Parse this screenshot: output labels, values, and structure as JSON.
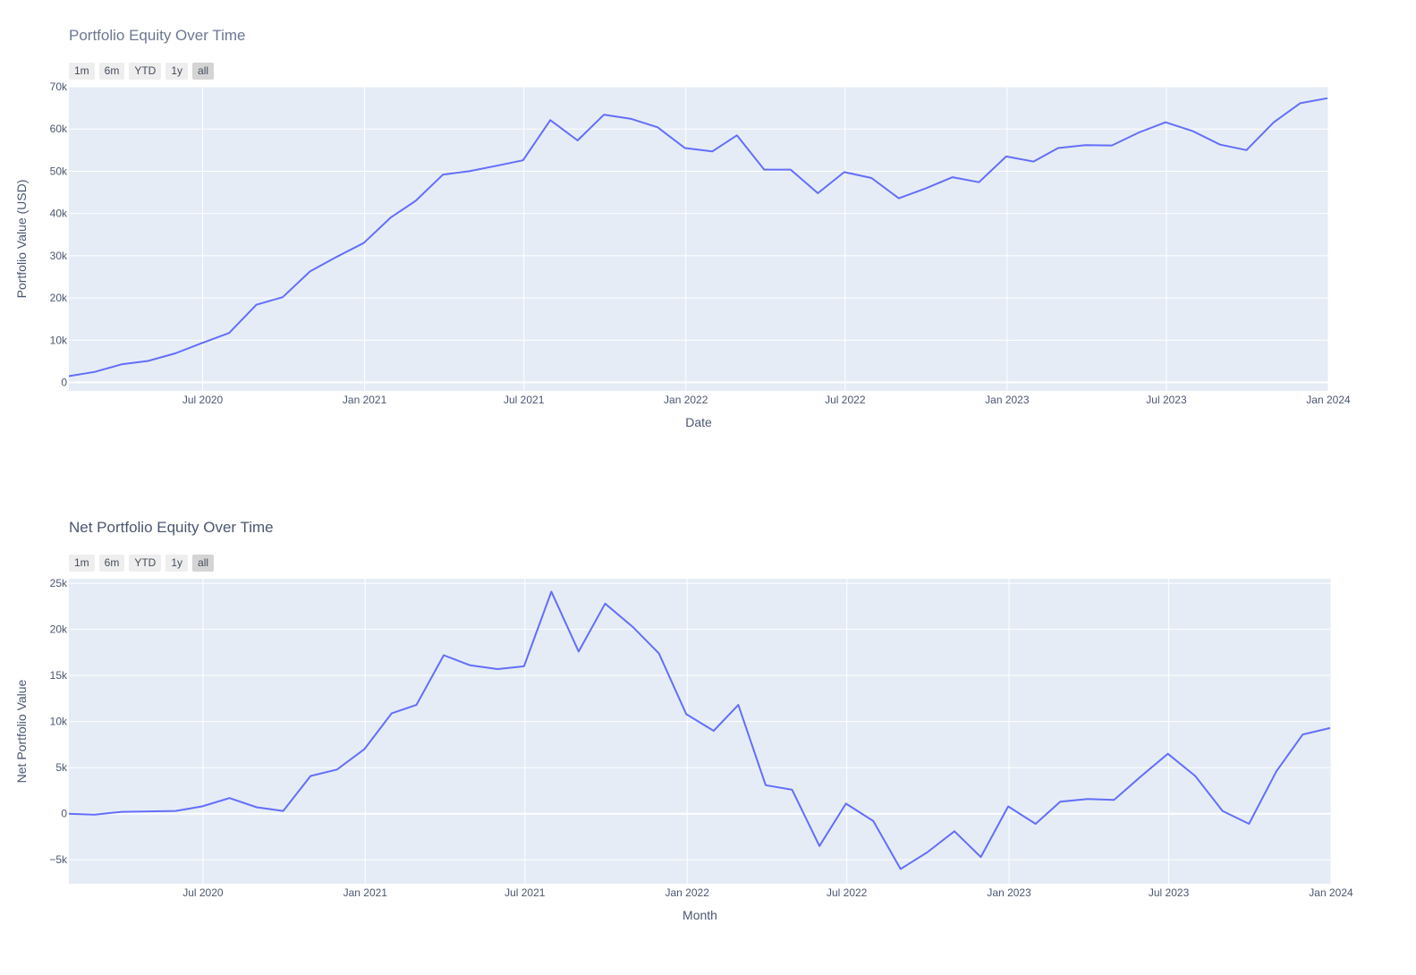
{
  "range_buttons": [
    "1m",
    "6m",
    "YTD",
    "1y",
    "all"
  ],
  "active_range": "all",
  "chart_data": [
    {
      "type": "line",
      "title": "Portfolio Equity Over Time",
      "xlabel": "Date",
      "ylabel": "Portfolio Value (USD)",
      "color": "#636efa",
      "grid": true,
      "xlim": [
        "2020-01-31",
        "2024-01-01"
      ],
      "ylim": [
        -2000,
        70000
      ],
      "x_ticks": [
        "Jul 2020",
        "Jan 2021",
        "Jul 2021",
        "Jan 2022",
        "Jul 2022",
        "Jan 2023",
        "Jul 2023",
        "Jan 2024"
      ],
      "y_ticks": [
        "0",
        "10k",
        "20k",
        "30k",
        "40k",
        "50k",
        "60k",
        "70k"
      ],
      "x": [
        "2020-01-31",
        "2020-02-29",
        "2020-03-31",
        "2020-04-30",
        "2020-05-31",
        "2020-06-30",
        "2020-07-31",
        "2020-08-31",
        "2020-09-30",
        "2020-10-31",
        "2020-11-30",
        "2020-12-31",
        "2021-01-31",
        "2021-02-28",
        "2021-03-31",
        "2021-04-30",
        "2021-05-31",
        "2021-06-30",
        "2021-07-31",
        "2021-08-31",
        "2021-09-30",
        "2021-10-31",
        "2021-11-30",
        "2021-12-31",
        "2022-01-31",
        "2022-02-28",
        "2022-03-31",
        "2022-04-30",
        "2022-05-31",
        "2022-06-30",
        "2022-07-31",
        "2022-08-31",
        "2022-09-30",
        "2022-10-31",
        "2022-11-30",
        "2022-12-31",
        "2023-01-31",
        "2023-02-28",
        "2023-03-31",
        "2023-04-30",
        "2023-05-31",
        "2023-06-30",
        "2023-07-31",
        "2023-08-31",
        "2023-09-30",
        "2023-10-31",
        "2023-11-30",
        "2023-12-31"
      ],
      "values": [
        1500,
        2500,
        4300,
        5100,
        6900,
        9300,
        11700,
        18400,
        20200,
        26300,
        29700,
        33000,
        39100,
        43000,
        49200,
        50000,
        51300,
        52600,
        62100,
        57300,
        63400,
        62400,
        60400,
        55500,
        54700,
        58500,
        50400,
        50400,
        44800,
        49800,
        48400,
        43600,
        45900,
        48600,
        47400,
        53500,
        52300,
        55500,
        56200,
        56100,
        59200,
        61600,
        59500,
        56300,
        55000,
        61600,
        66100,
        67300
      ]
    },
    {
      "type": "line",
      "title": "Net Portfolio Equity Over Time",
      "xlabel": "Month",
      "ylabel": "Net Portfolio Value",
      "color": "#636efa",
      "grid": true,
      "xlim": [
        "2020-01-31",
        "2024-01-01"
      ],
      "ylim": [
        -7600,
        25500
      ],
      "x_ticks": [
        "Jul 2020",
        "Jan 2021",
        "Jul 2021",
        "Jan 2022",
        "Jul 2022",
        "Jan 2023",
        "Jul 2023",
        "Jan 2024"
      ],
      "y_ticks": [
        "−5k",
        "0",
        "5k",
        "10k",
        "15k",
        "20k",
        "25k"
      ],
      "x": [
        "2020-01-31",
        "2020-02-29",
        "2020-03-31",
        "2020-04-30",
        "2020-05-31",
        "2020-06-30",
        "2020-07-31",
        "2020-08-31",
        "2020-09-30",
        "2020-10-31",
        "2020-11-30",
        "2020-12-31",
        "2021-01-31",
        "2021-02-28",
        "2021-03-31",
        "2021-04-30",
        "2021-05-31",
        "2021-06-30",
        "2021-07-31",
        "2021-08-31",
        "2021-09-30",
        "2021-10-31",
        "2021-11-30",
        "2021-12-31",
        "2022-01-31",
        "2022-02-28",
        "2022-03-31",
        "2022-04-30",
        "2022-05-31",
        "2022-06-30",
        "2022-07-31",
        "2022-08-31",
        "2022-09-30",
        "2022-10-31",
        "2022-11-30",
        "2022-12-31",
        "2023-01-31",
        "2023-02-28",
        "2023-03-31",
        "2023-04-30",
        "2023-05-31",
        "2023-06-30",
        "2023-07-31",
        "2023-08-31",
        "2023-09-30",
        "2023-10-31",
        "2023-11-30",
        "2023-12-31"
      ],
      "values": [
        0,
        -100,
        200,
        250,
        300,
        800,
        1700,
        700,
        300,
        4100,
        4800,
        7000,
        10900,
        11800,
        17200,
        16100,
        15700,
        16000,
        24100,
        17600,
        22800,
        20300,
        17400,
        10800,
        9000,
        11800,
        3100,
        2600,
        -3500,
        1100,
        -800,
        -6000,
        -4200,
        -1900,
        -4700,
        800,
        -1100,
        1300,
        1600,
        1500,
        4100,
        6500,
        4100,
        300,
        -1100,
        4600,
        8600,
        9300
      ]
    }
  ]
}
